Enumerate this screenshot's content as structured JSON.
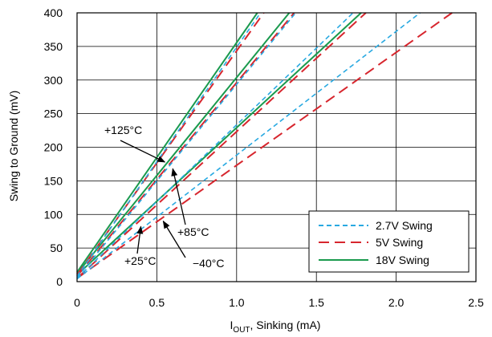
{
  "chart_data": {
    "type": "line",
    "title": "",
    "xlabel": {
      "main": "I",
      "sub": "OUT",
      "rest": ", Sinking (mA)"
    },
    "ylabel": "Swing to Ground (mV)",
    "xlim": [
      0,
      2.5
    ],
    "ylim": [
      0,
      400
    ],
    "xticks": [
      0,
      0.5,
      1.0,
      1.5,
      2.0,
      2.5
    ],
    "xtick_labels": [
      "0",
      "0.5",
      "1.0",
      "1.5",
      "2.0",
      "2.5"
    ],
    "yticks": [
      0,
      50,
      100,
      150,
      200,
      250,
      300,
      350,
      400
    ],
    "ytick_labels": [
      "0",
      "50",
      "100",
      "150",
      "200",
      "250",
      "300",
      "350",
      "400"
    ],
    "grid": true,
    "legend_position": "bottom-right",
    "series": [
      {
        "name": "2.7V Swing",
        "color": "#29a9e1",
        "dash": "dashed-short",
        "curves": [
          {
            "label": "+125°C",
            "x": [
              0,
              1.15
            ],
            "y": [
              8,
              400
            ]
          },
          {
            "label": "+85°C",
            "x": [
              0,
              1.37
            ],
            "y": [
              6,
              400
            ]
          },
          {
            "label": "+25°C",
            "x": [
              0,
              1.73
            ],
            "y": [
              5,
              400
            ]
          },
          {
            "label": "−40°C",
            "x": [
              0,
              2.15
            ],
            "y": [
              4,
              400
            ]
          }
        ]
      },
      {
        "name": "5V Swing",
        "color": "#d7262e",
        "dash": "dashed-long",
        "curves": [
          {
            "label": "+125°C",
            "x": [
              0,
              1.17
            ],
            "y": [
              10,
              400
            ]
          },
          {
            "label": "+85°C",
            "x": [
              0,
              1.36
            ],
            "y": [
              8,
              400
            ]
          },
          {
            "label": "+25°C",
            "x": [
              0,
              1.81
            ],
            "y": [
              5,
              400
            ]
          },
          {
            "label": "−40°C",
            "x": [
              0,
              2.35
            ],
            "y": [
              5,
              400
            ]
          }
        ]
      },
      {
        "name": "18V Swing",
        "color": "#1a9a4e",
        "dash": "solid",
        "curves": [
          {
            "label": "+125°C",
            "x": [
              0,
              1.13
            ],
            "y": [
              14,
              400
            ]
          },
          {
            "label": "+85°C",
            "x": [
              0,
              1.33
            ],
            "y": [
              12,
              400
            ]
          },
          {
            "label": "+25°C",
            "x": [
              0,
              1.78
            ],
            "y": [
              10,
              400
            ]
          }
        ]
      }
    ],
    "annotations": [
      {
        "text": "+125°C",
        "arrow_to": [
          0.55,
          178
        ]
      },
      {
        "text": "+85°C",
        "arrow_to": [
          0.6,
          168
        ]
      },
      {
        "text": "+25°C",
        "arrow_to": [
          0.4,
          82
        ]
      },
      {
        "text": "−40°C",
        "arrow_to": [
          0.54,
          90
        ]
      }
    ]
  }
}
